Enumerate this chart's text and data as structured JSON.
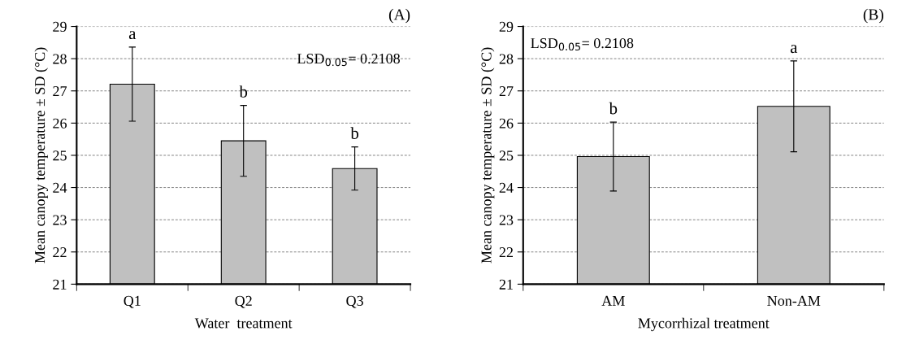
{
  "chart_data": [
    {
      "type": "bar",
      "title": "(A)",
      "xlabel": "Water  treatment",
      "ylabel": "Mean canopy temperature ± SD (°C)",
      "categories": [
        "Q1",
        "Q2",
        "Q3"
      ],
      "series": [
        {
          "color": "#c0c0c0",
          "values": [
            27.21,
            25.45,
            24.59
          ],
          "errors": [
            1.15,
            1.1,
            0.67
          ]
        }
      ],
      "ylim": [
        21,
        29
      ],
      "yticks": [
        21,
        22,
        23,
        24,
        25,
        26,
        27,
        28,
        29
      ],
      "grid": "y",
      "legend": false,
      "annotations": [
        "a",
        "b",
        "b",
        "LSD$_{0.05}$= 0.2108"
      ]
    },
    {
      "type": "bar",
      "title": "(B)",
      "xlabel": "Mycorrhizal treatment",
      "ylabel": "Mean canopy temperature ± SD (°C)",
      "categories": [
        "AM",
        "Non-AM"
      ],
      "series": [
        {
          "color": "#c0c0c0",
          "values": [
            24.96,
            26.52
          ],
          "errors": [
            1.07,
            1.41
          ]
        }
      ],
      "ylim": [
        21,
        29
      ],
      "yticks": [
        21,
        22,
        23,
        24,
        25,
        26,
        27,
        28,
        29
      ],
      "grid": "y",
      "legend": false,
      "annotations": [
        "b",
        "a",
        "LSD$_{0.05}$= 0.2108"
      ]
    }
  ]
}
